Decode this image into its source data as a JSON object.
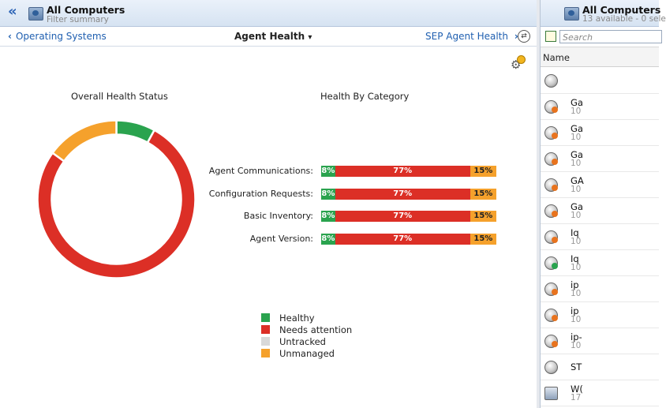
{
  "left_header": {
    "title": "All Computers",
    "subtitle": "Filter summary",
    "collapse_glyph": "«"
  },
  "nav": {
    "back_label": "Operating Systems",
    "back_glyph": "‹",
    "current_label": "Agent Health",
    "current_glyph": "▾",
    "forward_label": "SEP Agent Health",
    "forward_glyph": "›",
    "circle_glyph": "⇄"
  },
  "overall": {
    "title": "Overall Health Status"
  },
  "category": {
    "title": "Health By Category",
    "rows": [
      {
        "label": "Agent Communications:",
        "healthy": "8%",
        "attention": "77%",
        "unmanaged": "15%"
      },
      {
        "label": "Configuration Requests:",
        "healthy": "8%",
        "attention": "77%",
        "unmanaged": "15%"
      },
      {
        "label": "Basic Inventory:",
        "healthy": "8%",
        "attention": "77%",
        "unmanaged": "15%"
      },
      {
        "label": "Agent Version:",
        "healthy": "8%",
        "attention": "77%",
        "unmanaged": "15%"
      }
    ]
  },
  "legend": [
    {
      "label": "Healthy",
      "color": "#2aa34e"
    },
    {
      "label": "Needs attention",
      "color": "#dc2f26"
    },
    {
      "label": "Untracked",
      "color": "#d9d9d9"
    },
    {
      "label": "Unmanaged",
      "color": "#f5a12c"
    }
  ],
  "chart_data": {
    "type": "pie",
    "title": "Overall Health Status",
    "categories": [
      "Healthy",
      "Needs attention",
      "Untracked",
      "Unmanaged"
    ],
    "values": [
      8,
      77,
      0,
      15
    ],
    "colors": [
      "#2aa34e",
      "#dc2f26",
      "#d9d9d9",
      "#f5a12c"
    ]
  },
  "right_header": {
    "title": "All Computers",
    "subtitle": "13 available - 0 sele"
  },
  "search": {
    "placeholder": "Search"
  },
  "list": {
    "column_header": "Name",
    "rows": [
      {
        "name": "",
        "detail": "",
        "status": "none"
      },
      {
        "name": "Ga",
        "detail": "10",
        "status": "warning"
      },
      {
        "name": "Ga",
        "detail": "10",
        "status": "warning"
      },
      {
        "name": "Ga",
        "detail": "10",
        "status": "warning"
      },
      {
        "name": "GA",
        "detail": "10",
        "status": "warning"
      },
      {
        "name": "Ga",
        "detail": "10",
        "status": "warning"
      },
      {
        "name": "Iq",
        "detail": "10",
        "status": "warning"
      },
      {
        "name": "Iq",
        "detail": "10",
        "status": "ok"
      },
      {
        "name": "ip",
        "detail": "10",
        "status": "warning"
      },
      {
        "name": "ip",
        "detail": "10",
        "status": "warning"
      },
      {
        "name": "ip-",
        "detail": "10",
        "status": "warning"
      },
      {
        "name": "ST",
        "detail": "",
        "status": "none"
      },
      {
        "name": "W(",
        "detail": "17",
        "status": "server"
      }
    ]
  }
}
